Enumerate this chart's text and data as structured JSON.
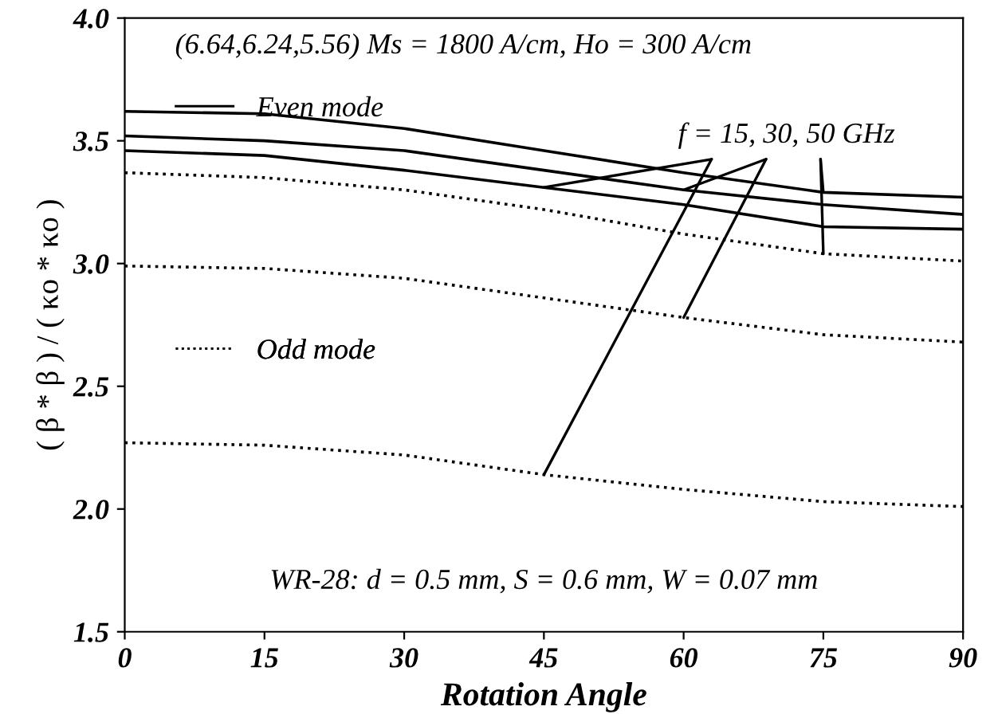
{
  "chart_data": {
    "type": "line",
    "xlabel": "Rotation Angle",
    "ylabel": "( β * β ) / ( κo * κo )",
    "x": [
      0,
      15,
      30,
      45,
      60,
      75,
      90
    ],
    "series": [
      {
        "name": "Even mode",
        "color": "#000000",
        "line_style": "solid",
        "values": [
          3.62,
          3.61,
          3.55,
          3.46,
          3.37,
          3.29,
          3.27
        ]
      },
      {
        "color": "#000000",
        "line_style": "solid",
        "values": [
          3.52,
          3.5,
          3.46,
          3.38,
          3.3,
          3.24,
          3.2
        ]
      },
      {
        "color": "#000000",
        "line_style": "solid",
        "values": [
          3.46,
          3.44,
          3.38,
          3.31,
          3.24,
          3.15,
          3.14
        ]
      },
      {
        "name": "Odd mode",
        "color": "#000000",
        "line_style": "dotted",
        "values": [
          3.37,
          3.35,
          3.3,
          3.22,
          3.12,
          3.04,
          3.01
        ]
      },
      {
        "color": "#000000",
        "line_style": "dotted",
        "values": [
          2.99,
          2.98,
          2.94,
          2.86,
          2.78,
          2.71,
          2.68
        ]
      },
      {
        "color": "#000000",
        "line_style": "dotted",
        "values": [
          2.27,
          2.26,
          2.22,
          2.14,
          2.08,
          2.03,
          2.01
        ]
      }
    ],
    "xlim": [
      0,
      90
    ],
    "xticks": [
      0,
      15,
      30,
      45,
      60,
      75,
      90
    ],
    "ylim": [
      1.5,
      4.0
    ],
    "yticks": [
      {
        "value": 1.5,
        "label": "1.5"
      },
      {
        "value": 2.0,
        "label": "2.0"
      },
      {
        "value": 2.5,
        "label": "2.5"
      },
      {
        "value": 3.0,
        "label": "3.0"
      },
      {
        "value": 3.5,
        "label": "3.5"
      },
      {
        "value": 4.0,
        "label": "4.0"
      }
    ],
    "annotations": [
      "(6.64,6.24,5.56) Ms = 1800 A/cm, Ho = 300 A/cm",
      {
        "text": "f = 15, 30, 50 GHz",
        "x": 45,
        "y": 3.31
      },
      "WR-28: d = 0.5 mm, S = 0.6 mm, W = 0.07 mm"
    ],
    "legend": "left",
    "grid": false,
    "marker": "none"
  }
}
